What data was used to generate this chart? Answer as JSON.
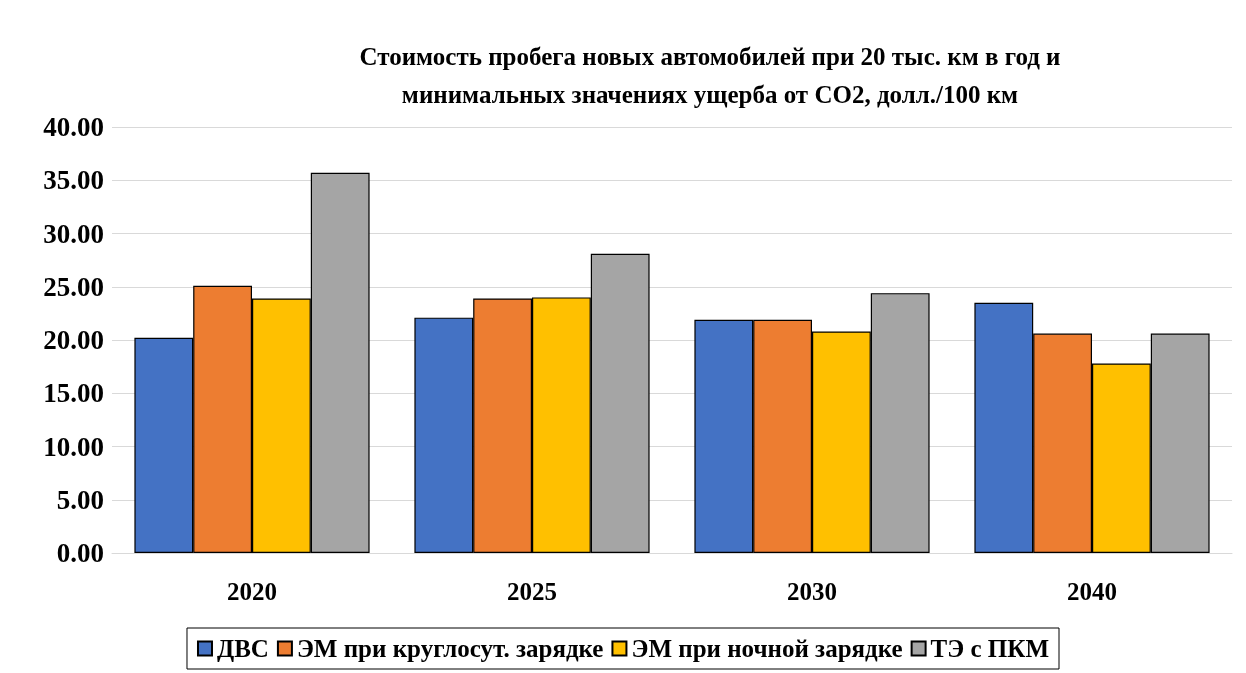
{
  "chart_data": {
    "type": "bar",
    "title": "Стоимость пробега новых автомобилей при 20 тыс. км в год и\nминимальных значениях ущерба от CO2, долл./100 км",
    "categories": [
      "2020",
      "2025",
      "2030",
      "2040"
    ],
    "series": [
      {
        "name": "ДВС",
        "color": "#4472c4",
        "values": [
          20.2,
          22.1,
          21.9,
          23.5
        ]
      },
      {
        "name": "ЭМ при круглосут. зарядке",
        "color": "#ed7d31",
        "values": [
          25.1,
          23.9,
          21.9,
          20.6
        ]
      },
      {
        "name": "ЭМ при ночной зарядке",
        "color": "#ffc000",
        "values": [
          23.9,
          24.0,
          20.8,
          17.8
        ]
      },
      {
        "name": "ТЭ с ПКМ",
        "color": "#a5a5a5",
        "values": [
          35.7,
          28.1,
          24.4,
          20.6
        ]
      }
    ],
    "ylim": [
      0,
      40
    ],
    "yticks": [
      {
        "value": 0,
        "label": "0.00"
      },
      {
        "value": 5,
        "label": "5.00"
      },
      {
        "value": 10,
        "label": "10.00"
      },
      {
        "value": 15,
        "label": "15.00"
      },
      {
        "value": 20,
        "label": "20.00"
      },
      {
        "value": 25,
        "label": "25.00"
      },
      {
        "value": 30,
        "label": "30.00"
      },
      {
        "value": 35,
        "label": "35.00"
      },
      {
        "value": 40,
        "label": "40.00"
      }
    ],
    "grid": "y",
    "legend": "bottom"
  }
}
